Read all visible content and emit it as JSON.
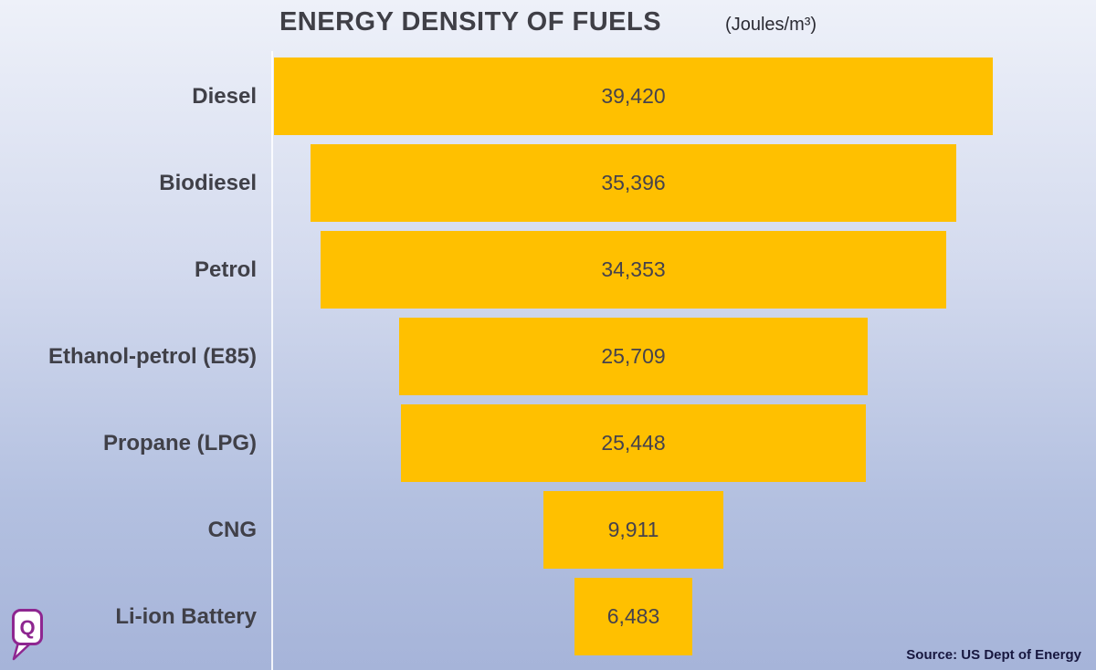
{
  "header": {
    "title": "ENERGY DENSITY OF FUELS",
    "units": "(Joules/m³)"
  },
  "footer": {
    "source": "Source: US Dept of Energy"
  },
  "logo": {
    "name": "quint-logo",
    "letter": "Q",
    "color": "#8e2690"
  },
  "colors": {
    "bar": "#FFC000",
    "label_text": "#404048",
    "value_text": "#46424c",
    "background_top": "#eef1f9",
    "background_bottom": "#a6b4d9"
  },
  "chart_data": {
    "type": "bar",
    "layout": "horizontal-centered-funnel",
    "title": "ENERGY DENSITY OF FUELS",
    "units_label": "(Joules/m³)",
    "categories": [
      "Diesel",
      "Biodiesel",
      "Petrol",
      "Ethanol-petrol (E85)",
      "Propane (LPG)",
      "CNG",
      "Li-ion Battery"
    ],
    "values": [
      39420,
      35396,
      34353,
      25709,
      25448,
      9911,
      6483
    ],
    "values_formatted": [
      "39,420",
      "35,396",
      "34,353",
      "25,709",
      "25,448",
      "9,911",
      "6,483"
    ],
    "max_value": 39420,
    "xlabel": "",
    "ylabel": "",
    "grid": false,
    "legend": "none"
  }
}
